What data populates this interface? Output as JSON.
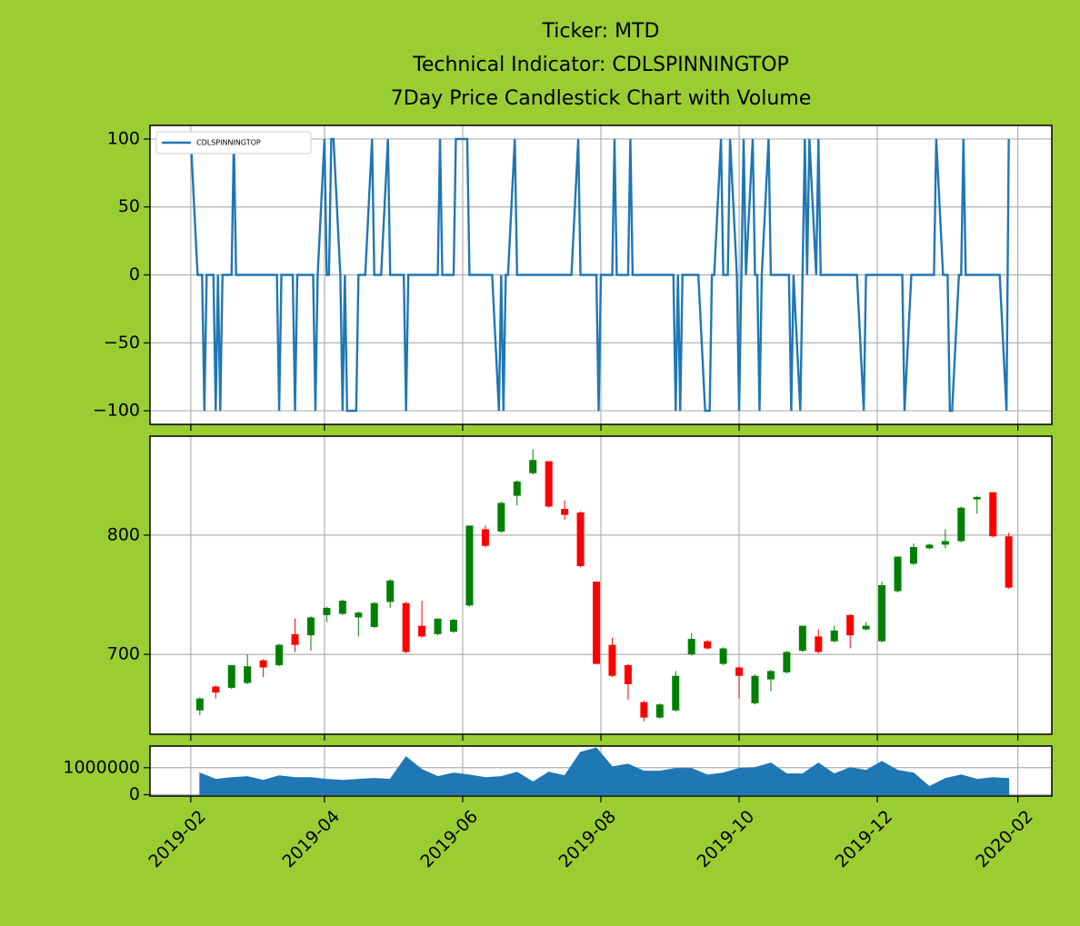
{
  "title": [
    "Ticker: MTD",
    "Technical Indicator: CDLSPINNINGTOP",
    "7Day Price Candlestick Chart with Volume"
  ],
  "chart_data": [
    {
      "type": "line",
      "x": [
        "2019-02-01",
        "2019-02-04",
        "2019-02-05",
        "2019-02-06",
        "2019-02-07",
        "2019-02-08",
        "2019-02-11",
        "2019-02-12",
        "2019-02-13",
        "2019-02-14",
        "2019-02-15",
        "2019-02-18",
        "2019-02-19",
        "2019-02-20",
        "2019-02-21",
        "2019-02-22",
        "2019-02-25",
        "2019-02-26",
        "2019-02-27",
        "2019-02-28",
        "2019-03-01",
        "2019-03-04",
        "2019-03-05",
        "2019-03-06",
        "2019-03-07",
        "2019-03-08",
        "2019-03-11",
        "2019-03-12",
        "2019-03-13",
        "2019-03-14",
        "2019-03-15",
        "2019-03-18",
        "2019-03-19",
        "2019-03-20",
        "2019-03-21",
        "2019-03-22",
        "2019-03-25",
        "2019-03-26",
        "2019-03-27",
        "2019-03-28",
        "2019-03-29",
        "2019-04-01",
        "2019-04-02",
        "2019-04-03",
        "2019-04-04",
        "2019-04-05",
        "2019-04-08",
        "2019-04-09",
        "2019-04-10",
        "2019-04-11",
        "2019-04-12",
        "2019-04-15",
        "2019-04-16",
        "2019-04-17",
        "2019-04-18",
        "2019-04-19",
        "2019-04-22",
        "2019-04-23",
        "2019-04-24",
        "2019-04-25",
        "2019-04-26",
        "2019-04-29",
        "2019-04-30",
        "2019-05-01",
        "2019-05-02",
        "2019-05-03",
        "2019-05-06",
        "2019-05-07",
        "2019-05-08",
        "2019-05-09",
        "2019-05-10",
        "2019-05-13",
        "2019-05-14",
        "2019-05-15",
        "2019-05-16",
        "2019-05-17",
        "2019-05-20",
        "2019-05-21",
        "2019-05-22",
        "2019-05-23",
        "2019-05-24",
        "2019-05-27",
        "2019-05-28",
        "2019-05-29",
        "2019-05-30",
        "2019-05-31",
        "2019-06-03",
        "2019-06-04",
        "2019-06-05",
        "2019-06-06",
        "2019-06-07",
        "2019-06-10",
        "2019-06-11",
        "2019-06-12",
        "2019-06-13",
        "2019-06-14",
        "2019-06-17",
        "2019-06-18",
        "2019-06-19",
        "2019-06-20",
        "2019-06-21",
        "2019-06-24",
        "2019-06-25",
        "2019-06-26",
        "2019-06-27",
        "2019-06-28",
        "2019-07-01",
        "2019-07-02",
        "2019-07-03",
        "2019-07-04",
        "2019-07-05",
        "2019-07-08",
        "2019-07-09",
        "2019-07-10",
        "2019-07-11",
        "2019-07-12",
        "2019-07-15",
        "2019-07-16",
        "2019-07-17",
        "2019-07-18",
        "2019-07-19",
        "2019-07-22",
        "2019-07-23",
        "2019-07-24",
        "2019-07-25",
        "2019-07-26",
        "2019-07-29",
        "2019-07-30",
        "2019-07-31",
        "2019-08-01",
        "2019-08-02",
        "2019-08-05",
        "2019-08-06",
        "2019-08-07",
        "2019-08-08",
        "2019-08-09",
        "2019-08-12",
        "2019-08-13",
        "2019-08-14",
        "2019-08-15",
        "2019-08-16",
        "2019-08-19",
        "2019-08-20",
        "2019-08-21",
        "2019-08-22",
        "2019-08-23",
        "2019-08-26",
        "2019-08-27",
        "2019-08-28",
        "2019-08-29",
        "2019-08-30",
        "2019-09-02",
        "2019-09-03",
        "2019-09-04",
        "2019-09-05",
        "2019-09-06",
        "2019-09-09",
        "2019-09-10",
        "2019-09-11",
        "2019-09-12",
        "2019-09-13",
        "2019-09-16",
        "2019-09-17",
        "2019-09-18",
        "2019-09-19",
        "2019-09-20",
        "2019-09-23",
        "2019-09-24",
        "2019-09-25",
        "2019-09-26",
        "2019-09-27",
        "2019-09-30",
        "2019-10-01",
        "2019-10-02",
        "2019-10-03",
        "2019-10-04",
        "2019-10-07",
        "2019-10-08",
        "2019-10-09",
        "2019-10-10",
        "2019-10-11",
        "2019-10-14",
        "2019-10-15",
        "2019-10-16",
        "2019-10-17",
        "2019-10-18",
        "2019-10-21",
        "2019-10-22",
        "2019-10-23",
        "2019-10-24",
        "2019-10-25",
        "2019-10-28",
        "2019-10-29",
        "2019-10-30",
        "2019-10-31",
        "2019-11-01",
        "2019-11-04",
        "2019-11-05",
        "2019-11-06",
        "2019-11-07",
        "2019-11-08",
        "2019-11-11",
        "2019-11-12",
        "2019-11-13",
        "2019-11-14",
        "2019-11-15",
        "2019-11-18",
        "2019-11-19",
        "2019-11-20",
        "2019-11-21",
        "2019-11-22",
        "2019-11-25",
        "2019-11-26",
        "2019-11-27",
        "2019-11-28",
        "2019-11-29",
        "2019-12-02",
        "2019-12-03",
        "2019-12-04",
        "2019-12-05",
        "2019-12-06",
        "2019-12-09",
        "2019-12-10",
        "2019-12-11",
        "2019-12-12",
        "2019-12-13",
        "2019-12-16",
        "2019-12-17",
        "2019-12-18",
        "2019-12-19",
        "2019-12-20",
        "2019-12-23",
        "2019-12-24",
        "2019-12-25",
        "2019-12-26",
        "2019-12-27",
        "2019-12-30",
        "2019-12-31",
        "2020-01-01",
        "2020-01-02",
        "2020-01-03",
        "2020-01-06",
        "2020-01-07",
        "2020-01-08",
        "2020-01-09",
        "2020-01-10",
        "2020-01-13",
        "2020-01-14",
        "2020-01-15",
        "2020-01-16",
        "2020-01-17",
        "2020-01-20",
        "2020-01-21",
        "2020-01-22",
        "2020-01-23",
        "2020-01-24",
        "2020-01-27",
        "2020-01-28"
      ],
      "series": [
        {
          "name": "CDLSPINNINGTOP",
          "color": "#1f77b4",
          "values": [
            100,
            0,
            0,
            0,
            -100,
            0,
            0,
            -100,
            0,
            -100,
            0,
            0,
            0,
            100,
            0,
            0,
            0,
            0,
            0,
            0,
            0,
            0,
            0,
            0,
            0,
            0,
            0,
            -100,
            0,
            0,
            0,
            0,
            -100,
            0,
            0,
            0,
            0,
            0,
            0,
            -100,
            0,
            100,
            0,
            0,
            100,
            100,
            0,
            -100,
            0,
            -100,
            -100,
            -100,
            0,
            0,
            0,
            0,
            100,
            0,
            0,
            0,
            0,
            100,
            0,
            0,
            0,
            0,
            0,
            -100,
            0,
            0,
            0,
            0,
            0,
            0,
            0,
            0,
            0,
            0,
            100,
            0,
            0,
            0,
            0,
            100,
            100,
            100,
            100,
            0,
            0,
            0,
            0,
            0,
            0,
            0,
            0,
            0,
            -100,
            0,
            -100,
            0,
            0,
            100,
            0,
            0,
            0,
            0,
            0,
            0,
            0,
            0,
            0,
            0,
            0,
            0,
            0,
            0,
            0,
            0,
            0,
            0,
            0,
            100,
            0,
            0,
            0,
            0,
            0,
            0,
            -100,
            0,
            0,
            0,
            0,
            100,
            0,
            0,
            0,
            0,
            100,
            0,
            0,
            0,
            0,
            0,
            0,
            0,
            0,
            0,
            0,
            0,
            0,
            0,
            -100,
            0,
            -100,
            0,
            0,
            0,
            0,
            0,
            0,
            -100,
            -100,
            -100,
            0,
            0,
            100,
            0,
            0,
            0,
            100,
            0,
            -100,
            0,
            100,
            0,
            100,
            0,
            0,
            -100,
            0,
            100,
            0,
            0,
            0,
            0,
            0,
            0,
            0,
            -100,
            0,
            -100,
            0,
            100,
            0,
            100,
            0,
            100,
            0,
            0,
            0,
            0,
            0,
            0,
            0,
            0,
            0,
            0,
            0,
            0,
            0,
            -100,
            0,
            0,
            0,
            0,
            0,
            0,
            0,
            0,
            0,
            0,
            0,
            0,
            0,
            -100,
            0,
            0,
            0,
            0,
            0,
            0,
            0,
            0,
            0,
            100,
            0,
            0,
            0,
            -100,
            -100,
            0,
            0,
            100,
            0,
            0,
            0,
            0,
            0,
            0,
            0,
            0,
            0,
            0,
            0,
            0,
            -100,
            100
          ]
        }
      ],
      "xlim": [
        "2019-01-14",
        "2020-02-16"
      ],
      "xticks": [
        "2019-02",
        "2019-04",
        "2019-06",
        "2019-08",
        "2019-10",
        "2019-12",
        "2020-02"
      ],
      "xticklabels": false,
      "ylim": [
        -110,
        110
      ],
      "yticks": [
        {
          "value": -100,
          "label": "−100"
        },
        {
          "value": -50,
          "label": "−50"
        },
        0,
        50,
        100
      ],
      "grid": true,
      "legend": "upper left"
    },
    {
      "type": "candlestick",
      "x": [
        "2019-02-05",
        "2019-02-12",
        "2019-02-19",
        "2019-02-26",
        "2019-03-05",
        "2019-03-12",
        "2019-03-19",
        "2019-03-26",
        "2019-04-02",
        "2019-04-09",
        "2019-04-16",
        "2019-04-23",
        "2019-04-30",
        "2019-05-07",
        "2019-05-14",
        "2019-05-21",
        "2019-05-28",
        "2019-06-04",
        "2019-06-11",
        "2019-06-18",
        "2019-06-25",
        "2019-07-02",
        "2019-07-09",
        "2019-07-16",
        "2019-07-23",
        "2019-07-30",
        "2019-08-06",
        "2019-08-13",
        "2019-08-20",
        "2019-08-27",
        "2019-09-03",
        "2019-09-10",
        "2019-09-17",
        "2019-09-24",
        "2019-10-01",
        "2019-10-08",
        "2019-10-15",
        "2019-10-22",
        "2019-10-29",
        "2019-11-05",
        "2019-11-12",
        "2019-11-19",
        "2019-11-26",
        "2019-12-03",
        "2019-12-10",
        "2019-12-17",
        "2019-12-24",
        "2019-12-31",
        "2020-01-07",
        "2020-01-14",
        "2020-01-21",
        "2020-01-28"
      ],
      "open": [
        653,
        673,
        672,
        676,
        695,
        691,
        717,
        716,
        733,
        734,
        731,
        723,
        744,
        743,
        724,
        717,
        719,
        741,
        805,
        803,
        833,
        852,
        862,
        822,
        819,
        761,
        708,
        691,
        660,
        647,
        653,
        700,
        711,
        692,
        689,
        659,
        679,
        685,
        703,
        715,
        711,
        733,
        721,
        711,
        753,
        776,
        789,
        792,
        795,
        830,
        836,
        799
      ],
      "high": [
        664,
        674,
        691,
        700,
        696,
        709,
        730,
        732,
        740,
        746,
        736,
        744,
        763,
        744,
        745,
        730,
        730,
        808,
        808,
        828,
        846,
        872,
        862,
        829,
        820,
        761,
        714,
        692,
        661,
        659,
        686,
        718,
        712,
        706,
        690,
        683,
        687,
        703,
        724,
        721,
        724,
        734,
        727,
        761,
        782,
        793,
        793,
        805,
        824,
        833,
        836,
        802
      ],
      "low": [
        649,
        663,
        671,
        675,
        681,
        690,
        702,
        703,
        727,
        733,
        715,
        722,
        739,
        701,
        714,
        716,
        718,
        740,
        790,
        802,
        825,
        851,
        823,
        813,
        773,
        692,
        681,
        662,
        644,
        646,
        652,
        699,
        704,
        691,
        663,
        658,
        669,
        684,
        702,
        701,
        710,
        705,
        720,
        710,
        752,
        775,
        788,
        789,
        794,
        818,
        798,
        755
      ],
      "close": [
        663,
        668,
        691,
        690,
        689,
        708,
        708,
        731,
        739,
        745,
        735,
        743,
        762,
        702,
        715,
        730,
        729,
        808,
        791,
        827,
        845,
        863,
        824,
        817,
        774,
        692,
        682,
        675,
        647,
        658,
        682,
        713,
        705,
        705,
        682,
        682,
        686,
        702,
        724,
        702,
        720,
        716,
        724,
        758,
        782,
        790,
        792,
        795,
        823,
        832,
        799,
        756
      ],
      "up_color": "green",
      "down_color": "red",
      "xlim": [
        "2019-01-14",
        "2020-02-16"
      ],
      "xticks": [
        "2019-02",
        "2019-04",
        "2019-06",
        "2019-08",
        "2019-10",
        "2019-12",
        "2020-02"
      ],
      "xticklabels": false,
      "ylim": [
        633,
        883
      ],
      "yticks": [
        700,
        800
      ],
      "grid": true
    },
    {
      "type": "area",
      "x": [
        "2019-02-05",
        "2019-02-12",
        "2019-02-19",
        "2019-02-26",
        "2019-03-05",
        "2019-03-12",
        "2019-03-19",
        "2019-03-26",
        "2019-04-02",
        "2019-04-09",
        "2019-04-16",
        "2019-04-23",
        "2019-04-30",
        "2019-05-07",
        "2019-05-14",
        "2019-05-21",
        "2019-05-28",
        "2019-06-04",
        "2019-06-11",
        "2019-06-18",
        "2019-06-25",
        "2019-07-02",
        "2019-07-09",
        "2019-07-16",
        "2019-07-23",
        "2019-07-30",
        "2019-08-06",
        "2019-08-13",
        "2019-08-20",
        "2019-08-27",
        "2019-09-03",
        "2019-09-10",
        "2019-09-17",
        "2019-09-24",
        "2019-10-01",
        "2019-10-08",
        "2019-10-15",
        "2019-10-22",
        "2019-10-29",
        "2019-11-05",
        "2019-11-12",
        "2019-11-19",
        "2019-11-26",
        "2019-12-03",
        "2019-12-10",
        "2019-12-17",
        "2019-12-24",
        "2019-12-31",
        "2020-01-07",
        "2020-01-14",
        "2020-01-21",
        "2020-01-28"
      ],
      "values": [
        800000,
        570000,
        630000,
        670000,
        530000,
        700000,
        630000,
        630000,
        570000,
        530000,
        570000,
        600000,
        570000,
        1400000,
        930000,
        670000,
        800000,
        730000,
        630000,
        670000,
        830000,
        470000,
        830000,
        700000,
        1570000,
        1730000,
        1030000,
        1130000,
        870000,
        870000,
        970000,
        970000,
        730000,
        800000,
        970000,
        1000000,
        1170000,
        770000,
        770000,
        1170000,
        770000,
        1000000,
        900000,
        1230000,
        900000,
        800000,
        300000,
        600000,
        730000,
        570000,
        630000,
        600000
      ],
      "color": "#1f77b4",
      "xlim": [
        "2019-01-14",
        "2020-02-16"
      ],
      "xticks": [
        "2019-02",
        "2019-04",
        "2019-06",
        "2019-08",
        "2019-10",
        "2019-12",
        "2020-02"
      ],
      "xticklabels": true,
      "ylim": [
        -50000,
        1800000
      ],
      "yticks": [
        0,
        1000000
      ],
      "grid": true
    }
  ]
}
